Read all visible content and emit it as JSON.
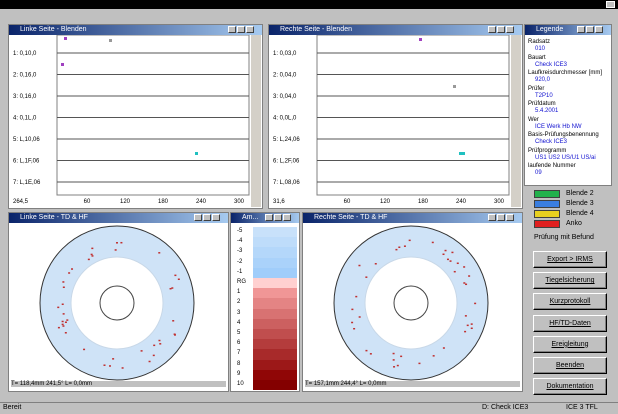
{
  "panels": {
    "left_top": {
      "title": "Linke Seite - Blenden",
      "rows": [
        "1: 0,10,0",
        "2: 0,16,0",
        "3: 0,16,0",
        "4: 0,1L,0",
        "5: L,10,06",
        "6: L,1F,06",
        "7: L,1E,06"
      ],
      "x_start": "264,5",
      "x_ticks": [
        "60",
        "120",
        "180",
        "240",
        "300"
      ]
    },
    "right_top": {
      "title": "Rechte Seite - Blenden",
      "rows": [
        "1: 0,03,0",
        "2: 0,04,0",
        "3: 0,04,0",
        "4: 0,0L,0",
        "5: L,24,06",
        "6: L,2F,06",
        "7: L,08,06"
      ],
      "x_start": "31,6",
      "x_ticks": [
        "60",
        "120",
        "180",
        "240",
        "300"
      ]
    },
    "legend": {
      "title": "Legende",
      "items": [
        [
          "Radsatz",
          "010"
        ],
        [
          "Bauart",
          "Check ICE3"
        ],
        [
          "Laufkreisdurchmesser [mm]",
          "920,0"
        ],
        [
          "Prüfer",
          "T2P10"
        ],
        [
          "Prüfdatum",
          "5.4.2001"
        ],
        [
          "Wer",
          "ICE Werk Hb NW"
        ],
        [
          "Basis-Prüfungsbenennung",
          "Check ICE3"
        ],
        [
          "Prüfprogramm",
          "US1 US2 US/U1 US/ai"
        ],
        [
          "laufende Nummer",
          "09"
        ]
      ]
    },
    "left_bottom": {
      "title": "Linke Seite - TD & HF",
      "status": "T= 118,4mm 241,5°  L= 0,0mm"
    },
    "scale": {
      "title": "Am...",
      "labels": [
        "-5",
        "-4",
        "-3",
        "-2",
        "-1",
        "RG",
        "1",
        "2",
        "3",
        "4",
        "5",
        "6",
        "7",
        "8",
        "9",
        "10"
      ]
    },
    "right_bottom": {
      "title": "Rechte Seite - TD & HF",
      "status": "T= 157,1mm 244,4°  L= 0,0mm"
    }
  },
  "swatches": [
    {
      "label": "Blende 2",
      "color": "#22b14c"
    },
    {
      "label": "Blende 3",
      "color": "#3a7ee0"
    },
    {
      "label": "Blende 4",
      "color": "#e8d020"
    },
    {
      "label": "Anko",
      "color": "#e02020"
    }
  ],
  "finding": "Prüfung mit Befund",
  "buttons": [
    "Export > IRMS",
    "Tiegelsicherung",
    "Kurzprotokoll",
    "HF/TD-Daten",
    "Ereigleitung",
    "Beenden",
    "Dokumentation"
  ],
  "status_bar": {
    "left": "Bereit",
    "right1": "D: Check ICE3",
    "right2": "ICE 3 TFL"
  }
}
